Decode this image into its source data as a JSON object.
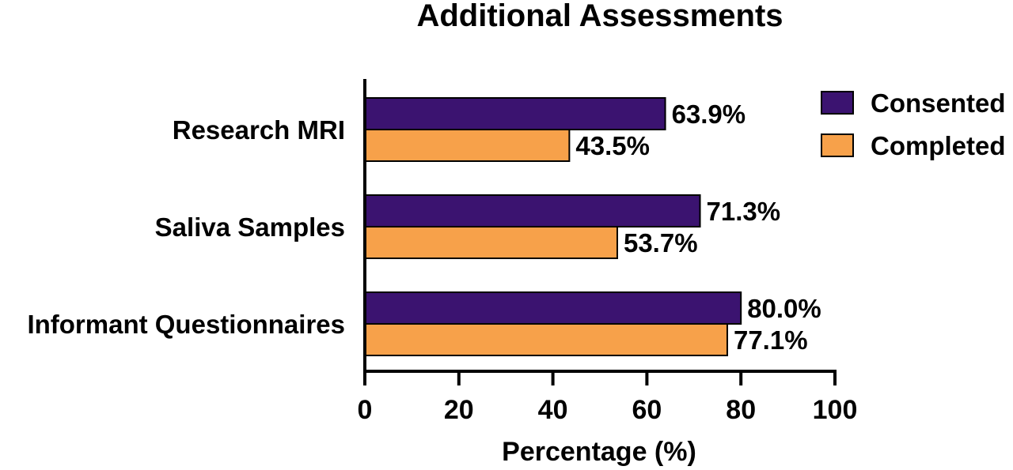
{
  "chart_data": {
    "type": "bar",
    "orientation": "horizontal",
    "title": "Additional Assessments",
    "xlabel": "Percentage (%)",
    "ylabel": "",
    "xlim": [
      0,
      100
    ],
    "xticks": [
      0,
      20,
      40,
      60,
      80,
      100
    ],
    "grid": false,
    "legend_position": "top-right",
    "categories": [
      "Research MRI",
      "Saliva Samples",
      "Informant Questionnaires"
    ],
    "series": [
      {
        "name": "Consented",
        "color": "#3b1370",
        "values": [
          63.9,
          71.3,
          80.0
        ],
        "labels": [
          "63.9%",
          "71.3%",
          "80.0%"
        ]
      },
      {
        "name": "Completed",
        "color": "#f7a14a",
        "values": [
          43.5,
          53.7,
          77.1
        ],
        "labels": [
          "43.5%",
          "53.7%",
          "77.1%"
        ]
      }
    ]
  }
}
